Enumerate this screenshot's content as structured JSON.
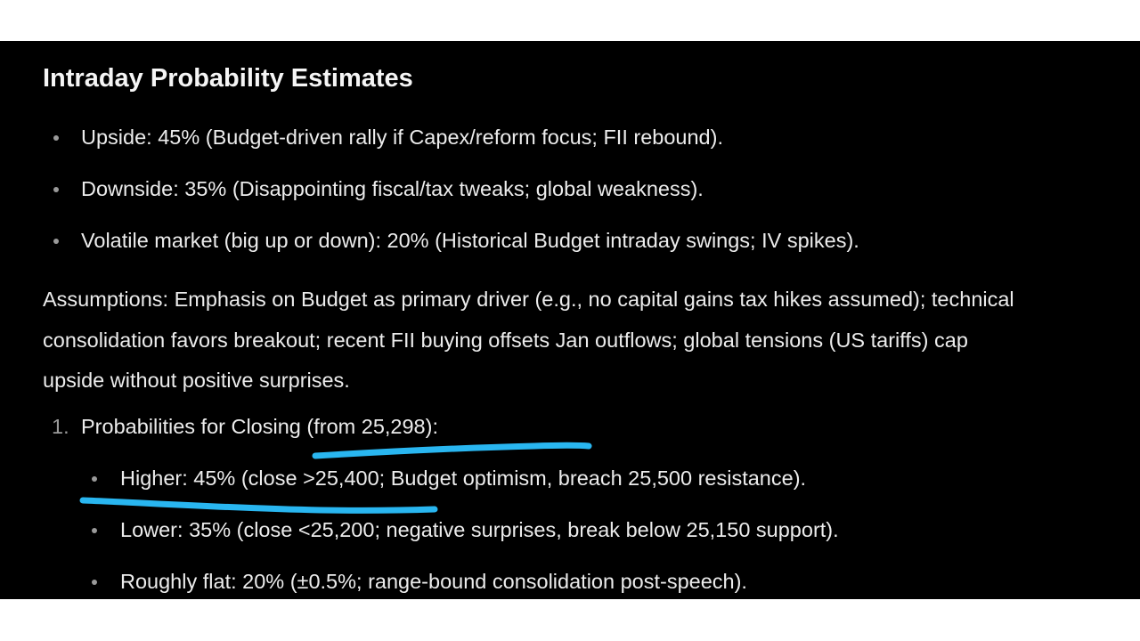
{
  "heading": "Intraday Probability Estimates",
  "bullets": [
    "Upside: 45% (Budget-driven rally if Capex/reform focus; FII rebound).",
    "Downside: 35% (Disappointing fiscal/tax tweaks; global weakness).",
    "Volatile market (big up or down): 20% (Historical Budget intraday swings; IV spikes)."
  ],
  "assumptions": [
    "Assumptions: Emphasis on Budget as primary driver (e.g., no capital gains tax hikes assumed); technical",
    "consolidation favors breakout; recent FII buying offsets Jan outflows; global tensions (US tariffs) cap",
    "upside without positive surprises."
  ],
  "closing": {
    "number": "1.",
    "label": "Probabilities for Closing (from 25,298):",
    "items": [
      "Higher: 45% (close >25,400; Budget optimism, breach 25,500 resistance).",
      "Lower: 35% (close <25,200; negative surprises, break below 25,150 support).",
      "Roughly flat: 20% (±0.5%; range-bound consolidation post-speech)."
    ]
  },
  "colors": {
    "background": "#000000",
    "text": "#ececec",
    "highlight": "#29b6f0"
  }
}
